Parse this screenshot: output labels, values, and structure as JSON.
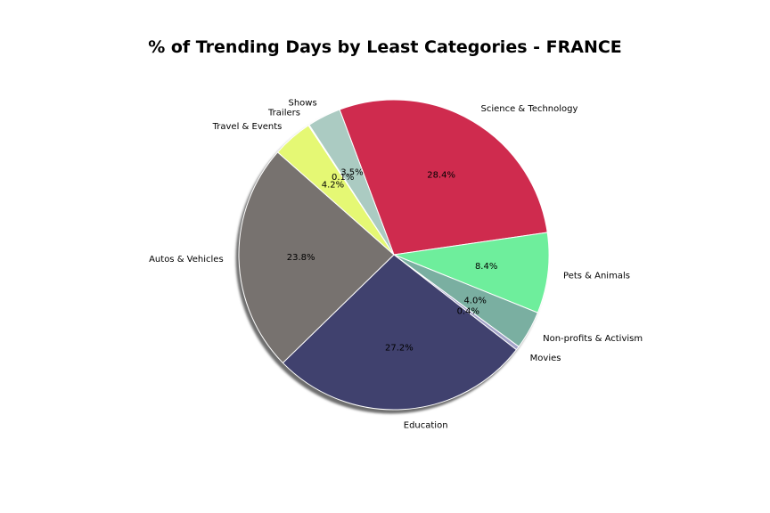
{
  "chart_data": {
    "type": "pie",
    "title": "% of Trending Days by Least Categories - FRANCE",
    "shadow": true,
    "slices": [
      {
        "label": "Science & Technology",
        "pct": "28.4%",
        "value": 28.4,
        "color": "#cf2b4e"
      },
      {
        "label": "Pets & Animals",
        "pct": "8.4%",
        "value": 8.4,
        "color": "#6eee9c"
      },
      {
        "label": "Non-profits & Activism",
        "pct": "4.0%",
        "value": 4.0,
        "color": "#7aafa1"
      },
      {
        "label": "Movies",
        "pct": "0.4%",
        "value": 0.4,
        "color": "#a3a3c8"
      },
      {
        "label": "Education",
        "pct": "27.2%",
        "value": 27.2,
        "color": "#40416e"
      },
      {
        "label": "Autos & Vehicles",
        "pct": "23.8%",
        "value": 23.8,
        "color": "#77726f"
      },
      {
        "label": "Travel & Events",
        "pct": "4.2%",
        "value": 4.2,
        "color": "#e5f874"
      },
      {
        "label": "Trailers",
        "pct": "0.1%",
        "value": 0.1,
        "color": "#d6d2a8"
      },
      {
        "label": "Shows",
        "pct": "3.5%",
        "value": 3.5,
        "color": "#abcbc2"
      }
    ]
  }
}
